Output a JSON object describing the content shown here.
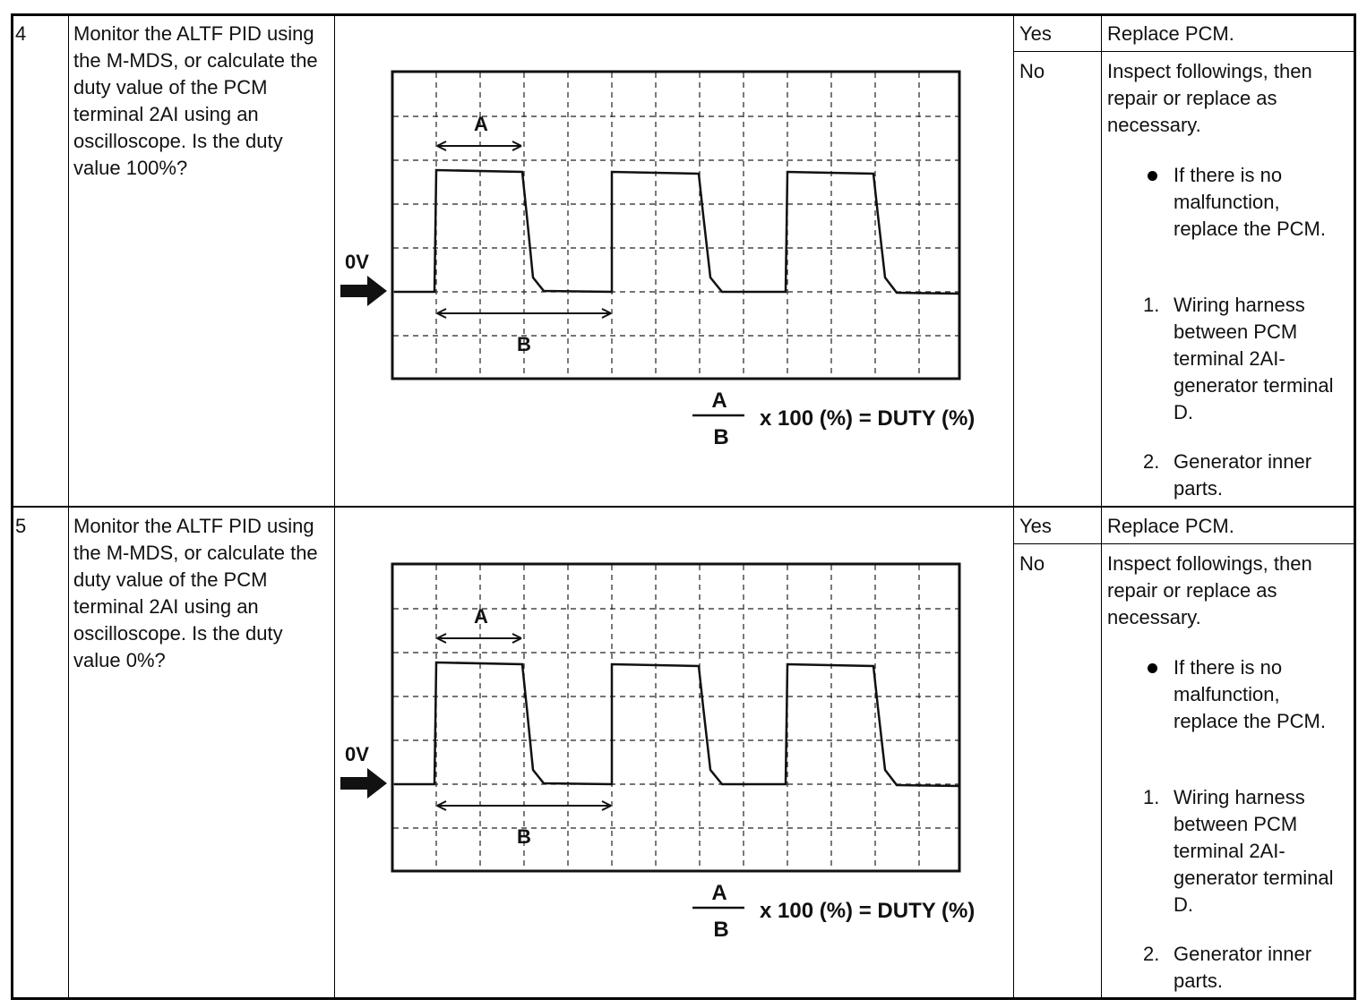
{
  "steps": [
    {
      "number": "4",
      "action": "Monitor the ALTF PID using the M-MDS, or calculate the duty value of the PCM terminal 2AI using an oscilloscope. Is the duty value 100%?",
      "diagram": {
        "zero_label": "0V",
        "a_label": "A",
        "b_label": "B",
        "numerator": "A",
        "denominator": "B",
        "formula": "x 100 (%) = DUTY (%)"
      },
      "yes": {
        "label": "Yes",
        "result": "Replace PCM."
      },
      "no": {
        "label": "No",
        "intro": "Inspect followings, then repair or replace as necessary.",
        "bullet": "If there is no malfunction, replace the PCM.",
        "items": [
          {
            "marker": "1.",
            "text": "Wiring harness between PCM terminal 2AI-generator terminal D."
          },
          {
            "marker": "2.",
            "text": "Generator inner parts."
          }
        ]
      }
    },
    {
      "number": "5",
      "action": "Monitor the ALTF PID using the M-MDS, or calculate the duty value of the PCM terminal 2AI using an oscilloscope. Is the duty value 0%?",
      "diagram": {
        "zero_label": "0V",
        "a_label": "A",
        "b_label": "B",
        "numerator": "A",
        "denominator": "B",
        "formula": "x 100 (%) = DUTY (%)"
      },
      "yes": {
        "label": "Yes",
        "result": "Replace PCM."
      },
      "no": {
        "label": "No",
        "intro": "Inspect followings, then repair or replace as necessary.",
        "bullet": "If there is no malfunction, replace the PCM.",
        "items": [
          {
            "marker": "1.",
            "text": "Wiring harness between PCM terminal 2AI-generator terminal D."
          },
          {
            "marker": "2.",
            "text": "Generator inner parts."
          }
        ]
      }
    }
  ]
}
